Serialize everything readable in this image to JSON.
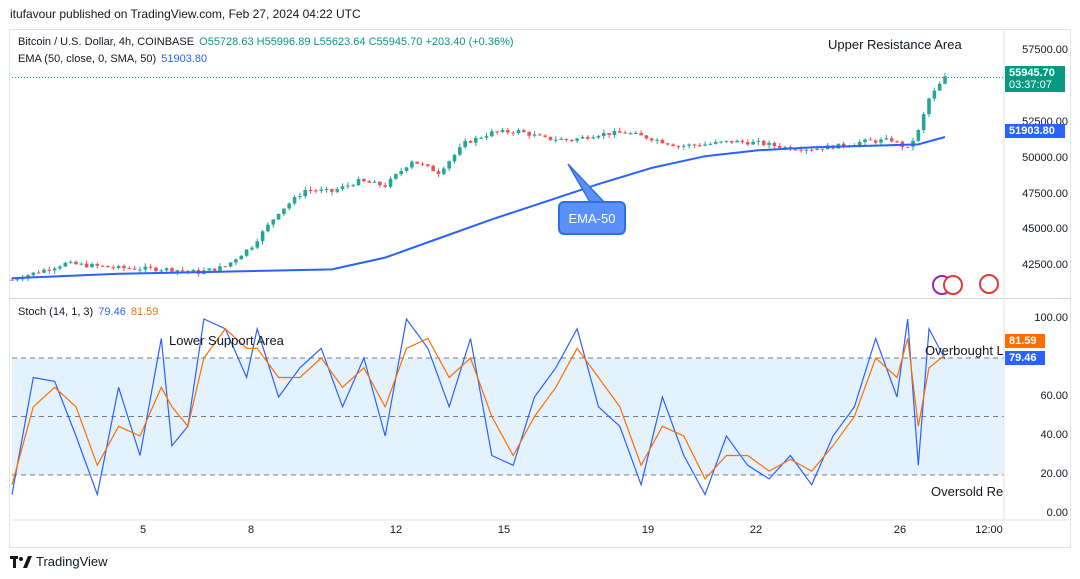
{
  "header": {
    "published": "itufavour published on TradingView.com, Feb 27, 2024 04:22 UTC"
  },
  "legend": {
    "symbol": "Bitcoin / U.S. Dollar, 4h, COINBASE",
    "ohlc": "O55728.63 H55996.89 L55623.64 C55945.70 +203.40 (+0.36%)",
    "ema_label": "EMA (50, close, 0, SMA, 50)",
    "ema_value": "51903.80",
    "stoch_label": "Stoch (14, 1, 3)",
    "stoch_k": "79.46",
    "stoch_d": "81.59"
  },
  "price_axis": {
    "ticks": [
      "57500.00",
      "52500.00",
      "50000.00",
      "47500.00",
      "45000.00",
      "42500.00"
    ],
    "last_price": "55945.70",
    "countdown": "03:37:07",
    "ema_tag": "51903.80"
  },
  "stoch_axis": {
    "ticks": [
      "100.00",
      "60.00",
      "40.00",
      "20.00",
      "0.00"
    ],
    "d_tag": "81.59",
    "k_tag": "79.46"
  },
  "time_axis": {
    "ticks": [
      "5",
      "8",
      "12",
      "15",
      "19",
      "22",
      "26",
      "12:00"
    ]
  },
  "annotations": {
    "upper": "Upper Resistance Area",
    "lower": "Lower Support Area",
    "overbought": "Overbought L",
    "oversold": "Oversold Re",
    "callout": "EMA-50"
  },
  "footer": {
    "brand": "TradingView"
  },
  "colors": {
    "up": "#26a69a",
    "down": "#ef5350",
    "ema": "#2962ff",
    "stoch_k": "#2962ff",
    "stoch_d": "#ff6d00",
    "band": "#e3f2fd"
  },
  "chart_data": [
    {
      "type": "line",
      "title": "Bitcoin / U.S. Dollar, 4h, COINBASE",
      "ylim": [
        41500,
        58500
      ],
      "series": [
        {
          "name": "EMA (50, close, 0, SMA, 50)",
          "x": [
            0,
            20,
            40,
            60,
            70,
            80,
            90,
            100,
            110,
            120,
            130,
            140,
            150,
            160,
            170,
            175
          ],
          "values": [
            42300,
            42600,
            42750,
            42900,
            43700,
            45000,
            46300,
            47500,
            48700,
            49800,
            50600,
            51000,
            51200,
            51300,
            51400,
            51904
          ]
        },
        {
          "name": "close",
          "x": [
            0,
            10,
            20,
            30,
            35,
            40,
            45,
            50,
            55,
            60,
            65,
            70,
            75,
            80,
            85,
            90,
            95,
            100,
            105,
            110,
            115,
            120,
            125,
            130,
            135,
            140,
            145,
            150,
            155,
            160,
            165,
            168,
            170,
            172,
            175
          ],
          "values": [
            42200,
            43300,
            43000,
            42900,
            42700,
            43100,
            44500,
            46800,
            48300,
            48200,
            48900,
            48600,
            50300,
            49500,
            51500,
            52200,
            52300,
            51800,
            51700,
            52100,
            52200,
            51800,
            51300,
            51400,
            51600,
            51500,
            51200,
            51100,
            51300,
            51600,
            51700,
            51100,
            52300,
            54500,
            55946
          ]
        }
      ]
    },
    {
      "type": "line",
      "title": "Stoch (14, 1, 3)",
      "ylim": [
        0,
        100
      ],
      "series": [
        {
          "name": "%K",
          "x": [
            0,
            4,
            8,
            12,
            16,
            20,
            24,
            28,
            30,
            33,
            36,
            40,
            44,
            46,
            50,
            54,
            58,
            62,
            66,
            70,
            74,
            78,
            82,
            86,
            90,
            94,
            98,
            102,
            106,
            110,
            114,
            118,
            122,
            126,
            130,
            134,
            138,
            142,
            146,
            150,
            154,
            158,
            162,
            166,
            168,
            170,
            172,
            175
          ],
          "values": [
            10,
            70,
            68,
            40,
            10,
            65,
            30,
            90,
            35,
            45,
            100,
            95,
            70,
            95,
            60,
            75,
            85,
            55,
            80,
            40,
            100,
            85,
            55,
            90,
            30,
            25,
            60,
            75,
            95,
            55,
            45,
            15,
            60,
            30,
            10,
            40,
            25,
            18,
            30,
            15,
            40,
            55,
            90,
            60,
            100,
            25,
            95,
            79.46
          ]
        },
        {
          "name": "%D",
          "x": [
            0,
            4,
            8,
            12,
            16,
            20,
            24,
            28,
            30,
            33,
            36,
            40,
            44,
            46,
            50,
            54,
            58,
            62,
            66,
            70,
            74,
            78,
            82,
            86,
            90,
            94,
            98,
            102,
            106,
            110,
            114,
            118,
            122,
            126,
            130,
            134,
            138,
            142,
            146,
            150,
            154,
            158,
            162,
            166,
            168,
            170,
            172,
            175
          ],
          "values": [
            15,
            55,
            65,
            55,
            25,
            45,
            40,
            65,
            55,
            45,
            80,
            95,
            85,
            85,
            70,
            70,
            80,
            65,
            75,
            55,
            85,
            90,
            70,
            80,
            50,
            30,
            50,
            65,
            85,
            70,
            55,
            25,
            45,
            40,
            18,
            30,
            30,
            22,
            28,
            22,
            35,
            50,
            80,
            70,
            90,
            45,
            75,
            81.59
          ]
        }
      ]
    }
  ]
}
